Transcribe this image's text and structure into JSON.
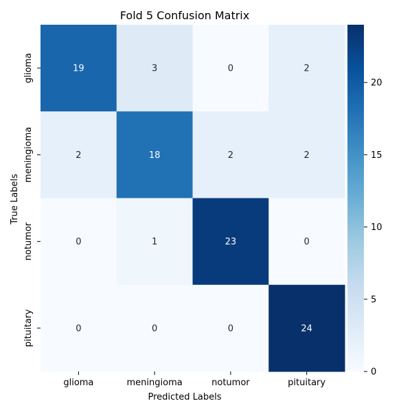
{
  "chart_data": {
    "type": "heatmap",
    "title": "Fold 5 Confusion Matrix",
    "xlabel": "Predicted Labels",
    "ylabel": "True Labels",
    "x_categories": [
      "glioma",
      "meningioma",
      "notumor",
      "pituitary"
    ],
    "y_categories": [
      "glioma",
      "meningioma",
      "notumor",
      "pituitary"
    ],
    "values": [
      [
        19,
        3,
        0,
        2
      ],
      [
        2,
        18,
        2,
        2
      ],
      [
        0,
        1,
        23,
        0
      ],
      [
        0,
        0,
        0,
        24
      ]
    ],
    "colorbar": {
      "min": 0,
      "max": 24,
      "ticks": [
        0,
        5,
        10,
        15,
        20
      ],
      "colormap": "Blues"
    }
  }
}
